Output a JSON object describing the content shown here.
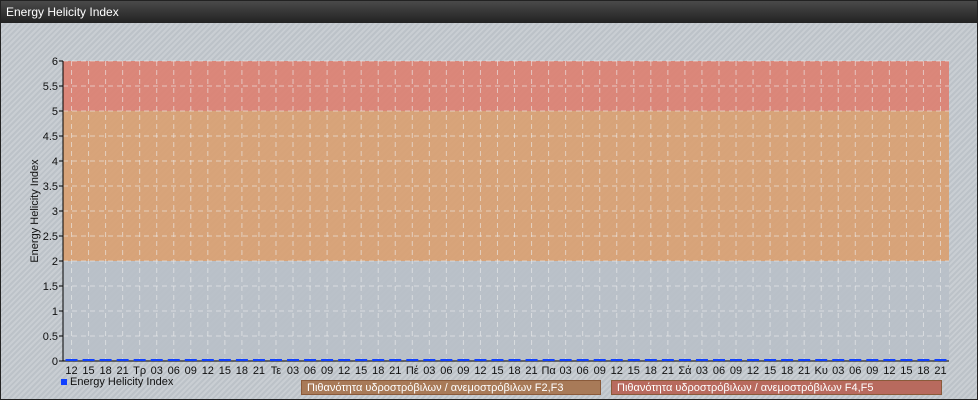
{
  "window": {
    "title": "Energy Helicity Index"
  },
  "chart_data": {
    "type": "line",
    "title": "",
    "ylabel": "Energy Helicity Index",
    "xlabel": "",
    "ylim": [
      0,
      6
    ],
    "yticks": [
      "0",
      "0.5",
      "1",
      "1.5",
      "2",
      "2.5",
      "3",
      "3.5",
      "4",
      "4.5",
      "5",
      "5.5",
      "6"
    ],
    "x": [
      "12",
      "15",
      "18",
      "21",
      "Τρ",
      "03",
      "06",
      "09",
      "12",
      "15",
      "18",
      "21",
      "Τε",
      "03",
      "06",
      "09",
      "12",
      "15",
      "18",
      "21",
      "Πέ",
      "03",
      "06",
      "09",
      "12",
      "15",
      "18",
      "21",
      "Πα",
      "03",
      "06",
      "09",
      "12",
      "15",
      "18",
      "21",
      "Σά",
      "03",
      "06",
      "09",
      "12",
      "15",
      "18",
      "21",
      "Κυ",
      "03",
      "06",
      "09",
      "12",
      "15",
      "18",
      "21"
    ],
    "series": [
      {
        "name": "Energy Helicity Index",
        "color": "#1040ff",
        "values": [
          0,
          0,
          0,
          0,
          0,
          0,
          0,
          0,
          0,
          0,
          0,
          0,
          0,
          0,
          0,
          0,
          0,
          0,
          0,
          0,
          0,
          0,
          0,
          0,
          0,
          0,
          0,
          0,
          0,
          0,
          0,
          0,
          0,
          0,
          0,
          0,
          0,
          0,
          0,
          0,
          0,
          0,
          0,
          0,
          0,
          0,
          0,
          0,
          0,
          0,
          0,
          0
        ]
      }
    ],
    "bands": [
      {
        "from": 0,
        "to": 2,
        "color": "#b8c0c8"
      },
      {
        "from": 2,
        "to": 5,
        "color": "#d9a070",
        "label": "Πιθανότητα υδροστρόβιλων / ανεμοστρόβιλων F2,F3",
        "legend_color": "#a87a58"
      },
      {
        "from": 5,
        "to": 6,
        "color": "#dd8070",
        "label": "Πιθανότητα υδροστρόβιλων / ανεμοστρόβιλων F4,F5",
        "legend_color": "#b86a5e"
      }
    ],
    "grid": true,
    "legend": "bottom"
  }
}
